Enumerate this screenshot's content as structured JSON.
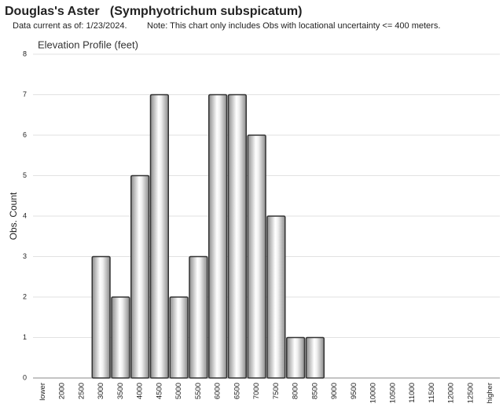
{
  "chart_data": {
    "type": "bar",
    "title": "Douglas's Aster   (Symphyotrichum subspicatum)",
    "subtitle": "Data current as of: 1/23/2024.",
    "note": "Note: This chart only includes Obs with locational uncertainty <= 400 meters.",
    "chart_title": "Elevation Profile (feet)",
    "y_label": "Obs. Count",
    "categories": [
      "lower",
      "2000",
      "2500",
      "3000",
      "3500",
      "4000",
      "4500",
      "5000",
      "5500",
      "6000",
      "6500",
      "7000",
      "7500",
      "8000",
      "8500",
      "9000",
      "9500",
      "10000",
      "10500",
      "11000",
      "11500",
      "12000",
      "12500",
      "higher"
    ],
    "values": [
      0,
      0,
      0,
      3,
      2,
      5,
      7,
      2,
      3,
      7,
      7,
      6,
      4,
      1,
      1,
      0,
      0,
      0,
      0,
      0,
      0,
      0,
      0,
      0
    ],
    "color": "#8c8c8c",
    "ylim": [
      0,
      8
    ],
    "yticks": [
      0,
      1,
      2,
      3,
      4,
      5,
      6,
      7,
      8
    ],
    "grid": true
  }
}
